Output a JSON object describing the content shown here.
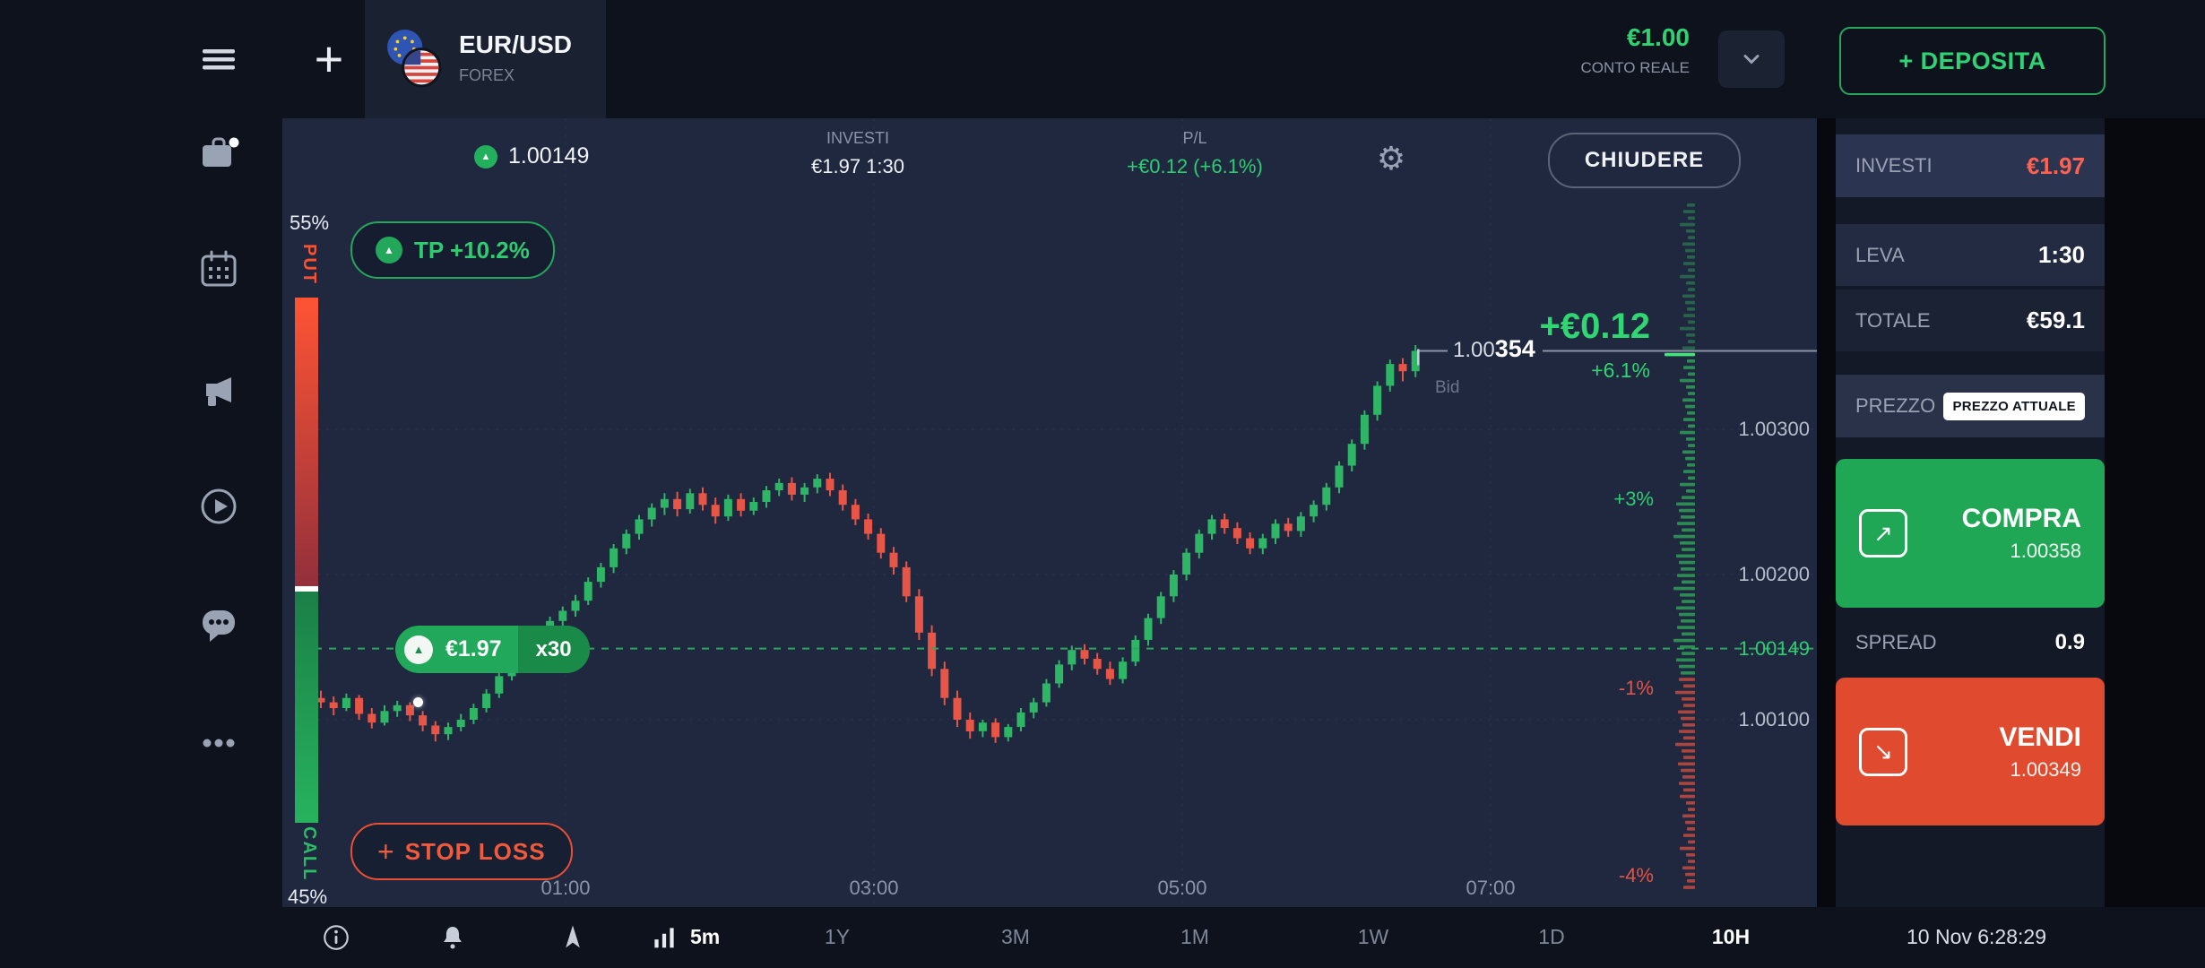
{
  "topbar": {
    "plus": "+",
    "instrument": {
      "name": "EUR/USD",
      "type": "FOREX"
    },
    "account": {
      "balance": "€1.00",
      "type": "CONTO REALE"
    },
    "deposit": "+ DEPOSITA"
  },
  "position_header": {
    "price": "1.00149",
    "invest_label": "INVESTI",
    "invest_value": "€1.97 1:30",
    "pl_label": "P/L",
    "pl_value": "+€0.12 (+6.1%)",
    "close": "CHIUDERE"
  },
  "gauge": {
    "put_pct": "55%",
    "put": "PUT",
    "call": "CALL",
    "call_pct": "45%"
  },
  "chart": {
    "tp": "TP +10.2%",
    "entry_amount": "€1.97",
    "entry_mult": "x30",
    "stop": "+ STOP LOSS",
    "price_ticks": [
      "1.00300",
      "1.00200",
      "1.00100"
    ],
    "entry_price_label": "1.00149",
    "pct_ticks": [
      "+3%",
      "-1%",
      "-4%"
    ],
    "pl_big": "+€0.12",
    "pl_pct": "+6.1%",
    "cur_prefix": "1.00",
    "cur_bold": "354",
    "bid": "Bid",
    "times": [
      "01:00",
      "03:00",
      "05:00",
      "07:00"
    ]
  },
  "panel": {
    "rows": [
      {
        "label": "INVESTI",
        "value": "€1.97"
      },
      {
        "label": "LEVA",
        "value": "1:30"
      },
      {
        "label": "TOTALE",
        "value": "€59.1"
      },
      {
        "label": "PREZZO",
        "value": "PREZZO ATTUALE"
      },
      {
        "label": "SPREAD",
        "value": "0.9"
      }
    ],
    "buy": {
      "label": "COMPRA",
      "price": "1.00358",
      "arrow": "↗"
    },
    "sell": {
      "label": "VENDI",
      "price": "1.00349",
      "arrow": "↘"
    }
  },
  "bottombar": {
    "period": "5m",
    "ranges": [
      "1Y",
      "3M",
      "1M",
      "1W",
      "1D",
      "10H"
    ],
    "active_range": "10H",
    "clock": "10 Nov 6:28:29"
  },
  "colors": {
    "green": "#2ecc71",
    "buy_green": "#1fa755",
    "sell_red": "#e04b30",
    "invest_red": "#ff6250",
    "chart_bg": "#202840"
  },
  "chart_data": {
    "type": "candlestick",
    "instrument": "EUR/USD",
    "timeframe": "5m",
    "current_price": 1.00354,
    "entry": {
      "price": 1.00149,
      "amount": "€1.97",
      "multiplier": 30,
      "tp_pct": "+10.2%"
    },
    "pl": {
      "amount": "+€0.12",
      "pct": "+6.1%"
    },
    "sentiment": {
      "put_pct": 55,
      "call_pct": 45
    },
    "y_ticks": [
      1.003,
      1.002,
      1.001
    ],
    "x_ticks": [
      "01:00",
      "03:00",
      "05:00",
      "07:00"
    ],
    "candles": [
      [
        1.00115,
        1.0012,
        1.00108,
        1.00112
      ],
      [
        1.00112,
        1.00116,
        1.00103,
        1.00108
      ],
      [
        1.00108,
        1.00118,
        1.00106,
        1.00115
      ],
      [
        1.00115,
        1.00117,
        1.001,
        1.00104
      ],
      [
        1.00104,
        1.00108,
        1.00094,
        1.00098
      ],
      [
        1.00098,
        1.0011,
        1.00096,
        1.00106
      ],
      [
        1.00106,
        1.00113,
        1.00102,
        1.0011
      ],
      [
        1.0011,
        1.00112,
        1.00099,
        1.00103
      ],
      [
        1.00103,
        1.00106,
        1.00092,
        1.00096
      ],
      [
        1.00096,
        1.00099,
        1.00085,
        1.0009
      ],
      [
        1.0009,
        1.00098,
        1.00086,
        1.00095
      ],
      [
        1.00095,
        1.00104,
        1.00092,
        1.001
      ],
      [
        1.001,
        1.00111,
        1.00097,
        1.00108
      ],
      [
        1.00108,
        1.00121,
        1.00105,
        1.00118
      ],
      [
        1.00118,
        1.00133,
        1.00115,
        1.0013
      ],
      [
        1.0013,
        1.00145,
        1.00127,
        1.00142
      ],
      [
        1.00142,
        1.00153,
        1.00138,
        1.0015
      ],
      [
        1.0015,
        1.00163,
        1.00147,
        1.0016
      ],
      [
        1.0016,
        1.00171,
        1.00155,
        1.00168
      ],
      [
        1.00168,
        1.00178,
        1.00163,
        1.00175
      ],
      [
        1.00175,
        1.00186,
        1.00171,
        1.00182
      ],
      [
        1.00182,
        1.00198,
        1.00179,
        1.00195
      ],
      [
        1.00195,
        1.00208,
        1.00191,
        1.00205
      ],
      [
        1.00205,
        1.00221,
        1.00201,
        1.00218
      ],
      [
        1.00218,
        1.00231,
        1.00214,
        1.00228
      ],
      [
        1.00228,
        1.00241,
        1.00224,
        1.00238
      ],
      [
        1.00238,
        1.00249,
        1.00233,
        1.00246
      ],
      [
        1.00246,
        1.00256,
        1.00241,
        1.00252
      ],
      [
        1.00252,
        1.00257,
        1.0024,
        1.00245
      ],
      [
        1.00245,
        1.00259,
        1.00242,
        1.00256
      ],
      [
        1.00256,
        1.0026,
        1.00244,
        1.00248
      ],
      [
        1.00248,
        1.00253,
        1.00235,
        1.0024
      ],
      [
        1.0024,
        1.00255,
        1.00237,
        1.00252
      ],
      [
        1.00252,
        1.00256,
        1.0024,
        1.00244
      ],
      [
        1.00244,
        1.00253,
        1.00241,
        1.0025
      ],
      [
        1.0025,
        1.00261,
        1.00246,
        1.00258
      ],
      [
        1.00258,
        1.00266,
        1.00254,
        1.00263
      ],
      [
        1.00263,
        1.00267,
        1.00251,
        1.00255
      ],
      [
        1.00255,
        1.00263,
        1.0025,
        1.0026
      ],
      [
        1.0026,
        1.00269,
        1.00256,
        1.00266
      ],
      [
        1.00266,
        1.0027,
        1.00254,
        1.00258
      ],
      [
        1.00258,
        1.00262,
        1.00244,
        1.00248
      ],
      [
        1.00248,
        1.00252,
        1.00234,
        1.00238
      ],
      [
        1.00238,
        1.00242,
        1.00224,
        1.00228
      ],
      [
        1.00228,
        1.00232,
        1.00211,
        1.00215
      ],
      [
        1.00215,
        1.00219,
        1.002,
        1.00205
      ],
      [
        1.00205,
        1.00209,
        1.00181,
        1.00185
      ],
      [
        1.00185,
        1.0019,
        1.00155,
        1.0016
      ],
      [
        1.0016,
        1.00165,
        1.0013,
        1.00135
      ],
      [
        1.00135,
        1.0014,
        1.0011,
        1.00115
      ],
      [
        1.00115,
        1.0012,
        1.00095,
        1.001
      ],
      [
        1.001,
        1.00105,
        1.00087,
        1.00092
      ],
      [
        1.00092,
        1.001,
        1.00088,
        1.00098
      ],
      [
        1.00098,
        1.00101,
        1.00084,
        1.00088
      ],
      [
        1.00088,
        1.00097,
        1.00085,
        1.00095
      ],
      [
        1.00095,
        1.00108,
        1.00092,
        1.00105
      ],
      [
        1.00105,
        1.00115,
        1.00101,
        1.00112
      ],
      [
        1.00112,
        1.00128,
        1.00109,
        1.00125
      ],
      [
        1.00125,
        1.00141,
        1.00122,
        1.00138
      ],
      [
        1.00138,
        1.00151,
        1.00134,
        1.00148
      ],
      [
        1.00148,
        1.00152,
        1.00138,
        1.00142
      ],
      [
        1.00142,
        1.00146,
        1.00131,
        1.00135
      ],
      [
        1.00135,
        1.0014,
        1.00124,
        1.00128
      ],
      [
        1.00128,
        1.00143,
        1.00125,
        1.0014
      ],
      [
        1.0014,
        1.00158,
        1.00137,
        1.00155
      ],
      [
        1.00155,
        1.00173,
        1.00151,
        1.0017
      ],
      [
        1.0017,
        1.00188,
        1.00166,
        1.00185
      ],
      [
        1.00185,
        1.00203,
        1.00181,
        1.002
      ],
      [
        1.002,
        1.00218,
        1.00196,
        1.00215
      ],
      [
        1.00215,
        1.00231,
        1.00211,
        1.00228
      ],
      [
        1.00228,
        1.00241,
        1.00224,
        1.00238
      ],
      [
        1.00238,
        1.00242,
        1.00228,
        1.00232
      ],
      [
        1.00232,
        1.00236,
        1.00221,
        1.00225
      ],
      [
        1.00225,
        1.00229,
        1.00214,
        1.00218
      ],
      [
        1.00218,
        1.00228,
        1.00214,
        1.00225
      ],
      [
        1.00225,
        1.00238,
        1.00221,
        1.00235
      ],
      [
        1.00235,
        1.00239,
        1.00226,
        1.0023
      ],
      [
        1.0023,
        1.00243,
        1.00226,
        1.0024
      ],
      [
        1.0024,
        1.00251,
        1.00236,
        1.00248
      ],
      [
        1.00248,
        1.00263,
        1.00244,
        1.0026
      ],
      [
        1.0026,
        1.00278,
        1.00256,
        1.00275
      ],
      [
        1.00275,
        1.00293,
        1.00271,
        1.0029
      ],
      [
        1.0029,
        1.00313,
        1.00286,
        1.0031
      ],
      [
        1.0031,
        1.00333,
        1.00306,
        1.0033
      ],
      [
        1.0033,
        1.00348,
        1.00326,
        1.00345
      ],
      [
        1.00345,
        1.00349,
        1.00333,
        1.0034
      ],
      [
        1.0034,
        1.00358,
        1.00336,
        1.00354
      ]
    ]
  }
}
